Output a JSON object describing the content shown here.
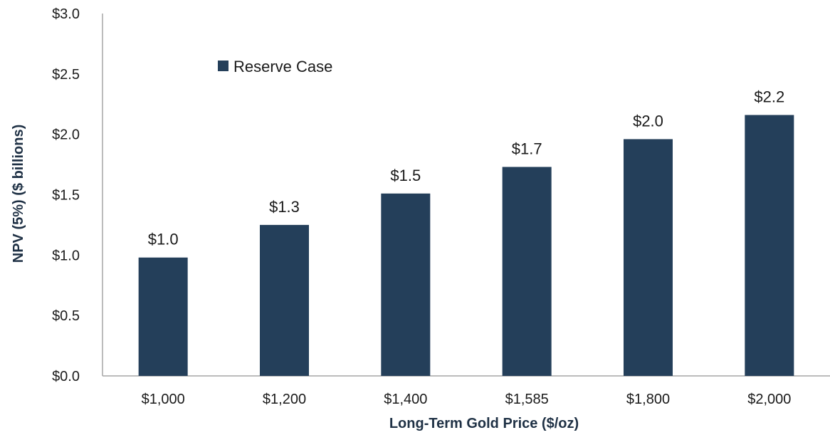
{
  "chart_data": {
    "type": "bar",
    "categories": [
      "$1,000",
      "$1,200",
      "$1,400",
      "$1,585",
      "$1,800",
      "$2,000"
    ],
    "series": [
      {
        "name": "Reserve Case",
        "values": [
          0.98,
          1.25,
          1.51,
          1.73,
          1.96,
          2.16
        ],
        "data_labels": [
          "$1.0",
          "$1.3",
          "$1.5",
          "$1.7",
          "$2.0",
          "$2.2"
        ]
      }
    ],
    "y_ticks": [
      "$0.0",
      "$0.5",
      "$1.0",
      "$1.5",
      "$2.0",
      "$2.5",
      "$3.0"
    ],
    "ylim": [
      0,
      3.0
    ],
    "xlabel": "Long-Term Gold Price ($/oz)",
    "ylabel": "NPV (5%) ($ billions)",
    "grid": false,
    "legend_position": "top-left",
    "colors": {
      "bar": "#243f5a",
      "axis": "#a6a6a6"
    }
  }
}
